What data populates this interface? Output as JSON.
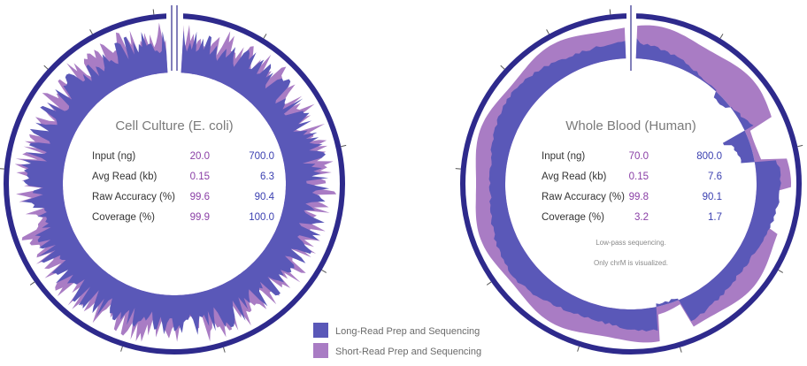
{
  "chart_data": [
    {
      "type": "circular-coverage",
      "title": "Cell Culture (E. coli)",
      "table": {
        "rows": [
          {
            "label": "Input (ng)",
            "short_read": "20.0",
            "long_read": "700.0"
          },
          {
            "label": "Avg Read (kb)",
            "short_read": "0.15",
            "long_read": "6.3"
          },
          {
            "label": "Raw Accuracy (%)",
            "short_read": "99.6",
            "long_read": "90.4"
          },
          {
            "label": "Coverage (%)",
            "short_read": "99.9",
            "long_read": "100.0"
          }
        ]
      },
      "notes": []
    },
    {
      "type": "circular-coverage",
      "title": "Whole Blood (Human)",
      "table": {
        "rows": [
          {
            "label": "Input (ng)",
            "short_read": "70.0",
            "long_read": "800.0"
          },
          {
            "label": "Avg Read (kb)",
            "short_read": "0.15",
            "long_read": "7.6"
          },
          {
            "label": "Raw Accuracy (%)",
            "short_read": "99.8",
            "long_read": "90.1"
          },
          {
            "label": "Coverage (%)",
            "short_read": "3.2",
            "long_read": "1.7"
          }
        ]
      },
      "notes": [
        "Low-pass sequencing.",
        "Only chrM is visualized."
      ]
    }
  ],
  "legend": [
    {
      "label": "Long-Read Prep and Sequencing",
      "color": "#5a58b8"
    },
    {
      "label": "Short-Read Prep and Sequencing",
      "color": "#a97cc4"
    }
  ],
  "colors": {
    "ring": "#2e2a8c",
    "long_read": "#5a58b8",
    "short_read": "#a97cc4",
    "background": "#ffffff"
  }
}
